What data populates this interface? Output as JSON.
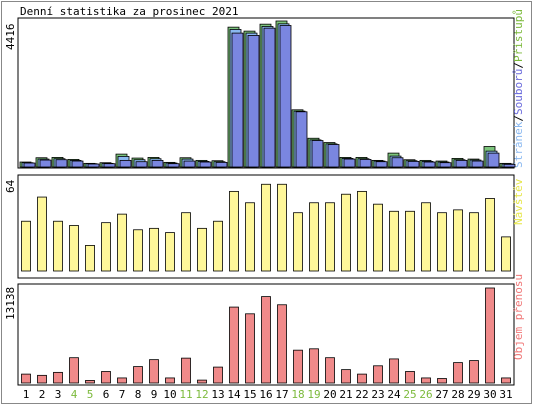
{
  "title": "Denní statistika za prosinec 2021",
  "colors": {
    "background": "#ffffff",
    "frame": "#000000",
    "panel_bg": "#ffffff",
    "green": "#7cc47c",
    "blue": "#8ab8f0",
    "yellow": "#fff79a",
    "red": "#f08a8a",
    "weekend_label": "#7cba3c",
    "default_label": "#000000",
    "legend_pages": "#8ab8f0",
    "legend_files": "#6a6adc",
    "legend_access": "#7cba3c",
    "legend_visits": "#e6e64a",
    "legend_volume": "#f07878"
  },
  "chart_data": [
    {
      "type": "bar",
      "panel": "top",
      "yaxis_max_label": "4416",
      "ymax": 4416,
      "legend": [
        {
          "label": "Stránek",
          "color_key": "legend_pages"
        },
        {
          "label": "/",
          "color_key": "default_label"
        },
        {
          "label": "Souborů",
          "color_key": "legend_files"
        },
        {
          "label": "/",
          "color_key": "default_label"
        },
        {
          "label": "Přístupů",
          "color_key": "legend_access"
        }
      ],
      "categories": [
        "1",
        "2",
        "3",
        "4",
        "5",
        "6",
        "7",
        "8",
        "9",
        "10",
        "11",
        "12",
        "13",
        "14",
        "15",
        "16",
        "17",
        "18",
        "19",
        "20",
        "21",
        "22",
        "23",
        "24",
        "25",
        "26",
        "27",
        "28",
        "29",
        "30",
        "31"
      ],
      "series": [
        {
          "name": "Přístupů",
          "color_key": "green",
          "values": [
            150,
            280,
            290,
            230,
            110,
            130,
            390,
            270,
            290,
            140,
            280,
            200,
            190,
            4230,
            4110,
            4320,
            4416,
            1730,
            870,
            740,
            290,
            290,
            200,
            420,
            220,
            200,
            180,
            260,
            240,
            620,
            110
          ]
        },
        {
          "name": "Stránek",
          "color_key": "blue",
          "values": [
            130,
            240,
            250,
            200,
            100,
            110,
            320,
            220,
            250,
            120,
            240,
            170,
            160,
            4160,
            4050,
            4250,
            4330,
            1690,
            820,
            700,
            260,
            250,
            180,
            330,
            190,
            170,
            150,
            220,
            210,
            480,
            90
          ]
        },
        {
          "name": "Souborů",
          "color_key": "files",
          "values": [
            120,
            210,
            220,
            180,
            90,
            100,
            200,
            160,
            200,
            100,
            180,
            150,
            140,
            4050,
            3980,
            4200,
            4280,
            1670,
            800,
            680,
            240,
            230,
            160,
            280,
            170,
            150,
            130,
            200,
            180,
            420,
            80
          ]
        }
      ]
    },
    {
      "type": "bar",
      "panel": "middle",
      "yaxis_max_label": "64",
      "ymax": 64,
      "legend": [
        {
          "label": "Návštěv",
          "color_key": "legend_visits"
        }
      ],
      "categories": [
        "1",
        "2",
        "3",
        "4",
        "5",
        "6",
        "7",
        "8",
        "9",
        "10",
        "11",
        "12",
        "13",
        "14",
        "15",
        "16",
        "17",
        "18",
        "19",
        "20",
        "21",
        "22",
        "23",
        "24",
        "25",
        "26",
        "27",
        "28",
        "29",
        "30",
        "31"
      ],
      "series": [
        {
          "name": "Návštěv",
          "color_key": "yellow",
          "values": [
            35,
            52,
            35,
            32,
            18,
            34,
            40,
            29,
            30,
            27,
            41,
            30,
            35,
            56,
            48,
            61,
            61,
            41,
            48,
            48,
            54,
            56,
            47,
            42,
            42,
            48,
            41,
            43,
            41,
            51,
            24
          ]
        }
      ]
    },
    {
      "type": "bar",
      "panel": "bottom",
      "yaxis_max_label": "13138",
      "ymax": 13138,
      "legend": [
        {
          "label": "Objem přenosu",
          "color_key": "legend_volume"
        }
      ],
      "categories": [
        "1",
        "2",
        "3",
        "4",
        "5",
        "6",
        "7",
        "8",
        "9",
        "10",
        "11",
        "12",
        "13",
        "14",
        "15",
        "16",
        "17",
        "18",
        "19",
        "20",
        "21",
        "22",
        "23",
        "24",
        "25",
        "26",
        "27",
        "28",
        "29",
        "30",
        "31"
      ],
      "series": [
        {
          "name": "Objem přenosu",
          "color_key": "red",
          "values": [
            1230,
            1060,
            1470,
            3500,
            350,
            1590,
            700,
            2270,
            3230,
            700,
            3440,
            400,
            2200,
            10500,
            9570,
            11950,
            10820,
            4540,
            4730,
            3500,
            1850,
            1230,
            2380,
            3330,
            1590,
            700,
            620,
            2820,
            3100,
            13138,
            700
          ]
        }
      ]
    }
  ],
  "x_labels": [
    {
      "text": "1",
      "weekend": false
    },
    {
      "text": "2",
      "weekend": false
    },
    {
      "text": "3",
      "weekend": false
    },
    {
      "text": "4",
      "weekend": true
    },
    {
      "text": "5",
      "weekend": true
    },
    {
      "text": "6",
      "weekend": false
    },
    {
      "text": "7",
      "weekend": false
    },
    {
      "text": "8",
      "weekend": false
    },
    {
      "text": "9",
      "weekend": false
    },
    {
      "text": "10",
      "weekend": false
    },
    {
      "text": "11",
      "weekend": true
    },
    {
      "text": "12",
      "weekend": true
    },
    {
      "text": "13",
      "weekend": false
    },
    {
      "text": "14",
      "weekend": false
    },
    {
      "text": "15",
      "weekend": false
    },
    {
      "text": "16",
      "weekend": false
    },
    {
      "text": "17",
      "weekend": false
    },
    {
      "text": "18",
      "weekend": true
    },
    {
      "text": "19",
      "weekend": true
    },
    {
      "text": "20",
      "weekend": false
    },
    {
      "text": "21",
      "weekend": false
    },
    {
      "text": "22",
      "weekend": false
    },
    {
      "text": "23",
      "weekend": false
    },
    {
      "text": "24",
      "weekend": false
    },
    {
      "text": "25",
      "weekend": true
    },
    {
      "text": "26",
      "weekend": true
    },
    {
      "text": "27",
      "weekend": false
    },
    {
      "text": "28",
      "weekend": false
    },
    {
      "text": "29",
      "weekend": false
    },
    {
      "text": "30",
      "weekend": false
    },
    {
      "text": "31",
      "weekend": false
    }
  ]
}
